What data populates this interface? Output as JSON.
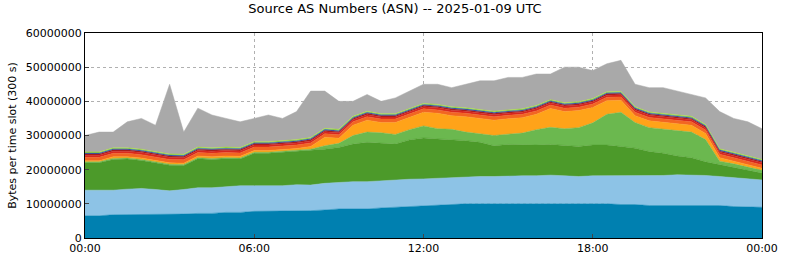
{
  "chart_data": {
    "type": "area",
    "title": "Source AS Numbers (ASN) -- 2025-01-09 UTC",
    "ylabel": "Bytes per time slot (300 s)",
    "stacked": true,
    "grid": true,
    "x": [
      0,
      0.5,
      1,
      1.5,
      2,
      2.5,
      3,
      3.5,
      4,
      4.5,
      5,
      5.5,
      6,
      6.5,
      7,
      7.5,
      8,
      8.5,
      9,
      9.5,
      10,
      10.5,
      11,
      11.5,
      12,
      12.5,
      13,
      13.5,
      14,
      14.5,
      15,
      15.5,
      16,
      16.5,
      17,
      17.5,
      18,
      18.5,
      19,
      19.5,
      20,
      20.5,
      21,
      21.5,
      22,
      22.5,
      23,
      23.5,
      24
    ],
    "xlim": [
      0,
      24
    ],
    "xticks": [
      {
        "value": 0,
        "label": "00:00"
      },
      {
        "value": 6,
        "label": "06:00"
      },
      {
        "value": 12,
        "label": "12:00"
      },
      {
        "value": 18,
        "label": "18:00"
      },
      {
        "value": 24,
        "label": "00:00"
      }
    ],
    "ylim": [
      0,
      60000000
    ],
    "yticks": [
      0,
      10000000,
      20000000,
      30000000,
      40000000,
      50000000,
      60000000
    ],
    "series": [
      {
        "color": "#0080b0",
        "values": [
          6500000,
          6500000,
          6800000,
          6800000,
          7000000,
          7000000,
          6800000,
          7000000,
          7200000,
          7200000,
          7500000,
          7500000,
          7800000,
          7800000,
          7800000,
          7800000,
          8000000,
          8200000,
          8500000,
          8500000,
          8500000,
          8800000,
          9000000,
          9200000,
          9500000,
          9500000,
          9800000,
          10000000,
          10000000,
          10000000,
          10000000,
          10200000,
          10200000,
          10200000,
          10200000,
          10000000,
          10000000,
          10000000,
          9800000,
          9800000,
          9500000,
          9500000,
          9500000,
          9500000,
          9500000,
          9500000,
          9200000,
          9200000,
          9000000
        ]
      },
      {
        "color": "#8dc3e6",
        "values": [
          7500000,
          7500000,
          7200000,
          7500000,
          7500000,
          7200000,
          7000000,
          7200000,
          7500000,
          7500000,
          7500000,
          7800000,
          7500000,
          7500000,
          7500000,
          7800000,
          7500000,
          7800000,
          7800000,
          8000000,
          8000000,
          8000000,
          8000000,
          8000000,
          7800000,
          8000000,
          8000000,
          8000000,
          8000000,
          8000000,
          8200000,
          8000000,
          8000000,
          8200000,
          8000000,
          8000000,
          8200000,
          8200000,
          8500000,
          8500000,
          8800000,
          8800000,
          9000000,
          9000000,
          8800000,
          8500000,
          8500000,
          8200000,
          8000000
        ]
      },
      {
        "color": "#4c9a2a",
        "values": [
          8000000,
          8000000,
          9000000,
          8800000,
          8200000,
          7800000,
          7500000,
          7000000,
          8500000,
          8300000,
          8200000,
          7800000,
          9500000,
          9500000,
          9800000,
          9800000,
          10000000,
          10000000,
          10200000,
          11000000,
          11500000,
          11000000,
          10500000,
          11500000,
          12000000,
          11500000,
          11000000,
          10500000,
          10000000,
          9000000,
          9200000,
          9000000,
          9000000,
          9000000,
          8800000,
          8800000,
          9000000,
          9000000,
          8500000,
          8000000,
          7000000,
          6500000,
          5500000,
          5000000,
          4000000,
          3500000,
          3000000,
          2500000,
          2000000
        ]
      },
      {
        "color": "#6bb84f",
        "values": [
          300000,
          300000,
          300000,
          300000,
          300000,
          300000,
          300000,
          300000,
          300000,
          300000,
          300000,
          300000,
          300000,
          300000,
          300000,
          300000,
          500000,
          1000000,
          1200000,
          2500000,
          3000000,
          3000000,
          2800000,
          3000000,
          3500000,
          3000000,
          3000000,
          2500000,
          2500000,
          3000000,
          3000000,
          3500000,
          4500000,
          5000000,
          5000000,
          5500000,
          6500000,
          9000000,
          10000000,
          7500000,
          7000000,
          7000000,
          7500000,
          7500000,
          6500000,
          1000000,
          1000000,
          800000,
          800000
        ]
      },
      {
        "color": "#ffa319",
        "values": [
          300000,
          300000,
          500000,
          400000,
          400000,
          400000,
          400000,
          400000,
          500000,
          500000,
          500000,
          500000,
          500000,
          500000,
          500000,
          500000,
          800000,
          2500000,
          1500000,
          3000000,
          3500000,
          3000000,
          3500000,
          3500000,
          4000000,
          4500000,
          4000000,
          4500000,
          4500000,
          4500000,
          4500000,
          4500000,
          4500000,
          5500000,
          5000000,
          5000000,
          4500000,
          4000000,
          3500000,
          2000000,
          2000000,
          2000000,
          2000000,
          2000000,
          1800000,
          1000000,
          800000,
          800000,
          600000
        ]
      },
      {
        "color": "#f26522",
        "values": [
          1000000,
          1000000,
          1000000,
          1000000,
          1000000,
          1000000,
          1000000,
          1000000,
          1000000,
          1000000,
          1000000,
          1000000,
          1000000,
          1000000,
          1000000,
          1000000,
          1000000,
          1000000,
          1000000,
          1000000,
          1000000,
          1000000,
          1000000,
          1000000,
          1000000,
          1000000,
          1000000,
          1000000,
          1000000,
          1000000,
          1000000,
          1000000,
          1000000,
          1000000,
          1000000,
          1000000,
          1000000,
          1000000,
          1000000,
          1000000,
          1000000,
          1000000,
          1000000,
          1000000,
          1000000,
          1000000,
          1000000,
          1000000,
          1000000
        ]
      },
      {
        "color": "#d7261e",
        "values": [
          600000,
          600000,
          600000,
          600000,
          600000,
          600000,
          600000,
          600000,
          600000,
          600000,
          600000,
          600000,
          600000,
          600000,
          600000,
          600000,
          600000,
          600000,
          600000,
          600000,
          600000,
          600000,
          600000,
          600000,
          600000,
          600000,
          600000,
          600000,
          600000,
          600000,
          600000,
          600000,
          600000,
          600000,
          600000,
          600000,
          600000,
          600000,
          600000,
          600000,
          600000,
          600000,
          600000,
          600000,
          600000,
          600000,
          600000,
          600000,
          600000
        ]
      },
      {
        "color": "#a31d1d",
        "values": [
          400000,
          400000,
          400000,
          400000,
          400000,
          400000,
          400000,
          400000,
          400000,
          400000,
          400000,
          400000,
          400000,
          400000,
          400000,
          400000,
          400000,
          400000,
          400000,
          400000,
          400000,
          400000,
          400000,
          400000,
          400000,
          400000,
          400000,
          400000,
          400000,
          400000,
          400000,
          400000,
          400000,
          400000,
          400000,
          400000,
          400000,
          400000,
          400000,
          400000,
          400000,
          400000,
          400000,
          400000,
          400000,
          400000,
          400000,
          400000,
          400000
        ]
      },
      {
        "color": "#1f5fbf",
        "values": [
          300000,
          300000,
          300000,
          300000,
          300000,
          300000,
          300000,
          300000,
          300000,
          300000,
          300000,
          300000,
          300000,
          300000,
          300000,
          300000,
          300000,
          300000,
          300000,
          300000,
          300000,
          300000,
          300000,
          300000,
          300000,
          300000,
          300000,
          300000,
          300000,
          300000,
          300000,
          300000,
          300000,
          300000,
          300000,
          300000,
          300000,
          300000,
          300000,
          300000,
          300000,
          300000,
          300000,
          300000,
          300000,
          300000,
          300000,
          300000,
          300000
        ]
      },
      {
        "color": "#a6e22e",
        "values": [
          300000,
          300000,
          300000,
          300000,
          300000,
          300000,
          300000,
          300000,
          300000,
          300000,
          300000,
          300000,
          300000,
          300000,
          300000,
          300000,
          300000,
          300000,
          300000,
          300000,
          300000,
          300000,
          300000,
          300000,
          300000,
          300000,
          300000,
          300000,
          300000,
          300000,
          300000,
          300000,
          300000,
          300000,
          300000,
          300000,
          300000,
          300000,
          300000,
          300000,
          300000,
          300000,
          300000,
          300000,
          300000,
          300000,
          300000,
          300000,
          300000
        ]
      },
      {
        "color": "#a9a9a9",
        "values": [
          4800000,
          5800000,
          4600000,
          7600000,
          9000000,
          7700000,
          20400000,
          6500000,
          11400000,
          9600000,
          8400000,
          7500000,
          6800000,
          7800000,
          6500000,
          8200000,
          13600000,
          10900000,
          8200000,
          4400000,
          4900000,
          3600000,
          4600000,
          5200000,
          5600000,
          5900000,
          5600000,
          6900000,
          8400000,
          8900000,
          9500000,
          9200000,
          9200000,
          7500000,
          10400000,
          10100000,
          8200000,
          8200000,
          9100000,
          6600000,
          7100000,
          7600000,
          6900000,
          6400000,
          7800000,
          10900000,
          9900000,
          9900000,
          9000000
        ]
      }
    ]
  }
}
